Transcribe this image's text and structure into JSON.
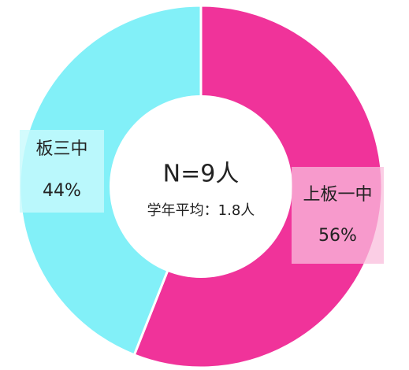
{
  "chart_data": {
    "type": "donut",
    "center_title": "N=9人",
    "center_subtitle": "学年平均：1.8人",
    "categories": [
      "上板一中",
      "板三中"
    ],
    "values": [
      56,
      44
    ],
    "value_labels": [
      "56%",
      "44%"
    ],
    "colors": [
      "#f0339a",
      "#82f0f8"
    ]
  }
}
